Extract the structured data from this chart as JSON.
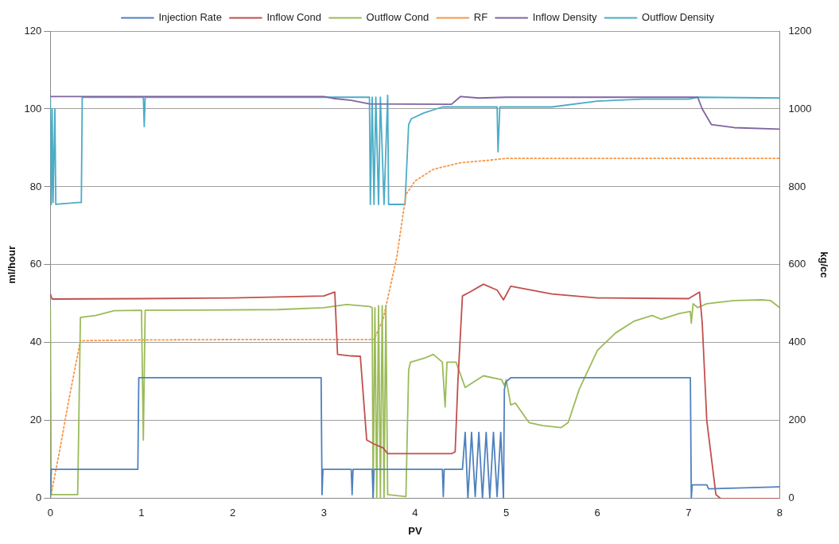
{
  "chart_data": {
    "type": "line",
    "xlabel": "PV",
    "ylabel": "ml/hour",
    "y2label": "kg/cc",
    "xlim": [
      0,
      8
    ],
    "xticks": [
      0,
      1,
      2,
      3,
      4,
      5,
      6,
      7,
      8
    ],
    "ylim": [
      0,
      120
    ],
    "yticks": [
      0,
      20,
      40,
      60,
      80,
      100,
      120
    ],
    "y2lim": [
      0,
      1200
    ],
    "y2ticks": [
      0,
      200,
      400,
      600,
      800,
      1000,
      1200
    ],
    "grid": "y",
    "legend": "top",
    "marker": "none",
    "series": [
      {
        "name": "Injection Rate",
        "color": "#4f81bd",
        "x": [
          0,
          0.01,
          0.96,
          0.97,
          2.97,
          2.98,
          2.99,
          3.3,
          3.31,
          3.32,
          3.53,
          3.54,
          3.55,
          4.3,
          4.31,
          4.32,
          4.52,
          4.55,
          4.58,
          4.62,
          4.66,
          4.7,
          4.74,
          4.78,
          4.82,
          4.86,
          4.9,
          4.94,
          4.97,
          4.98,
          5.0,
          5.05,
          7.02,
          7.03,
          7.04,
          7.2,
          7.22,
          8
        ],
        "values": [
          0,
          7.5,
          7.5,
          31,
          31,
          1,
          7.5,
          7.5,
          1,
          7.5,
          7.5,
          0,
          7.5,
          7.5,
          0.5,
          7.5,
          7.5,
          17,
          0,
          17,
          0.5,
          17,
          0,
          17,
          0,
          17,
          0.5,
          17,
          0,
          28,
          30,
          31,
          31,
          0,
          3.5,
          3.5,
          2.5,
          3
        ]
      },
      {
        "name": "Inflow Cond",
        "color": "#c0504d",
        "x": [
          0,
          0.02,
          1,
          2,
          3,
          3.12,
          3.15,
          3.3,
          3.4,
          3.47,
          3.55,
          3.65,
          3.7,
          4.4,
          4.44,
          4.47,
          4.52,
          4.6,
          4.75,
          4.9,
          4.97,
          5.05,
          5.5,
          6,
          7.0,
          7.12,
          7.15,
          7.2,
          7.3,
          7.35,
          8
        ],
        "values": [
          52.5,
          51.2,
          51.3,
          51.5,
          52,
          53,
          37,
          36.6,
          36.5,
          15,
          14,
          13,
          11.5,
          11.5,
          12,
          30,
          52,
          53,
          55,
          53.5,
          51,
          54.5,
          52.5,
          51.5,
          51.3,
          53,
          45,
          20,
          1,
          0,
          0
        ]
      },
      {
        "name": "Outflow Cond",
        "color": "#9bbb59",
        "x": [
          0,
          0.01,
          0.3,
          0.33,
          0.5,
          0.7,
          1,
          1.02,
          1.04,
          2.5,
          3,
          3.25,
          3.5,
          3.53,
          3.54,
          3.56,
          3.58,
          3.6,
          3.62,
          3.64,
          3.66,
          3.68,
          3.7,
          3.9,
          3.93,
          3.95,
          4.1,
          4.2,
          4.3,
          4.33,
          4.35,
          4.45,
          4.55,
          4.65,
          4.75,
          4.95,
          4.98,
          5.0,
          5.05,
          5.1,
          5.25,
          5.4,
          5.6,
          5.68,
          5.8,
          6.0,
          6.2,
          6.4,
          6.6,
          6.7,
          6.9,
          7.02,
          7.03,
          7.05,
          7.1,
          7.2,
          7.5,
          7.8,
          7.9,
          8
        ],
        "values": [
          49,
          1,
          1,
          46.5,
          47,
          48.2,
          48.3,
          15,
          48.3,
          48.5,
          49,
          49.8,
          49.3,
          49,
          0,
          49,
          0,
          49.5,
          0,
          49.5,
          0,
          49.5,
          1,
          0.5,
          33,
          35,
          36,
          37,
          35,
          23.5,
          35,
          35,
          28.5,
          30,
          31.5,
          30.5,
          29,
          30.5,
          24,
          24.5,
          19.5,
          18.7,
          18.2,
          19.5,
          28,
          38,
          42.5,
          45.5,
          47,
          46,
          47.5,
          48,
          45,
          50,
          49,
          50,
          50.8,
          51,
          50.8,
          49
        ]
      },
      {
        "name": "RF",
        "color": "#f79646",
        "line_style": "dotted",
        "x": [
          0,
          0.1,
          0.2,
          0.33,
          1,
          2,
          3,
          3.55,
          3.65,
          3.8,
          3.9,
          4,
          4.2,
          4.5,
          4.8,
          5.0,
          8
        ],
        "values": [
          0,
          12,
          25,
          40.5,
          40.7,
          40.8,
          40.8,
          40.8,
          46,
          62,
          78,
          81.5,
          84.5,
          86.2,
          86.8,
          87.3,
          87.3
        ]
      },
      {
        "name": "Inflow Density",
        "color": "#8064a2",
        "axis": "y2",
        "x": [
          0,
          3,
          3.1,
          3.3,
          3.5,
          4.4,
          4.5,
          4.7,
          5,
          7.1,
          7.15,
          7.25,
          7.5,
          8
        ],
        "values": [
          1032,
          1032,
          1027,
          1022,
          1013,
          1012,
          1032,
          1028,
          1030,
          1030,
          1000,
          960,
          952,
          948
        ]
      },
      {
        "name": "Outflow Density",
        "color": "#4bacc6",
        "axis": "y2",
        "x": [
          0,
          0.01,
          0.02,
          0.03,
          0.05,
          0.06,
          0.3,
          0.34,
          0.35,
          1.02,
          1.03,
          1.04,
          3.5,
          3.51,
          3.53,
          3.55,
          3.57,
          3.6,
          3.62,
          3.66,
          3.7,
          3.71,
          3.89,
          3.93,
          3.96,
          4.1,
          4.3,
          4.5,
          4.9,
          4.91,
          4.93,
          5.5,
          6,
          6.5,
          7.0,
          7.1,
          8
        ],
        "values": [
          1030,
          755,
          1000,
          760,
          1000,
          755,
          760,
          760,
          1030,
          1030,
          955,
          1030,
          1030,
          755,
          1030,
          755,
          1030,
          755,
          1030,
          755,
          1035,
          755,
          755,
          960,
          975,
          990,
          1005,
          1005,
          1005,
          890,
          1005,
          1005,
          1020,
          1025,
          1025,
          1030,
          1028
        ]
      }
    ]
  }
}
